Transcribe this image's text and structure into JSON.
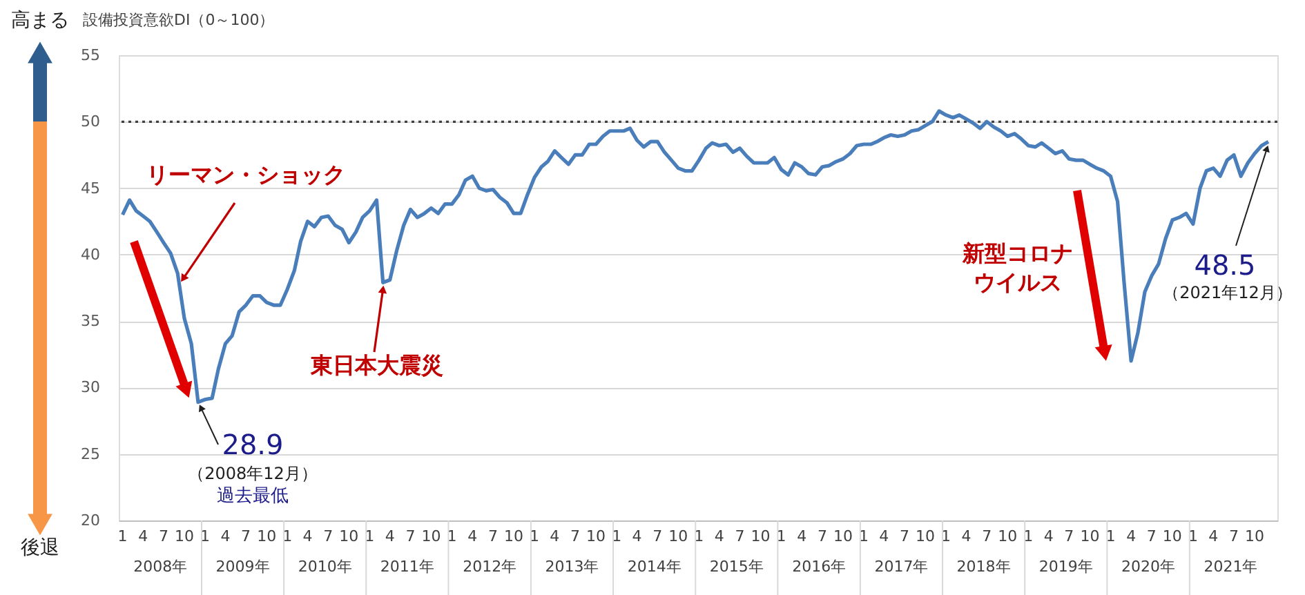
{
  "chart_data": {
    "type": "line",
    "ylabel": "設備投資意欲DI（0～100）",
    "x": [
      "2008-01",
      "2008-02",
      "2008-03",
      "2008-04",
      "2008-05",
      "2008-06",
      "2008-07",
      "2008-08",
      "2008-09",
      "2008-10",
      "2008-11",
      "2008-12",
      "2009-01",
      "2009-02",
      "2009-03",
      "2009-04",
      "2009-05",
      "2009-06",
      "2009-07",
      "2009-08",
      "2009-09",
      "2009-10",
      "2009-11",
      "2009-12",
      "2010-01",
      "2010-02",
      "2010-03",
      "2010-04",
      "2010-05",
      "2010-06",
      "2010-07",
      "2010-08",
      "2010-09",
      "2010-10",
      "2010-11",
      "2010-12",
      "2011-01",
      "2011-02",
      "2011-03",
      "2011-04",
      "2011-05",
      "2011-06",
      "2011-07",
      "2011-08",
      "2011-09",
      "2011-10",
      "2011-11",
      "2011-12",
      "2012-01",
      "2012-02",
      "2012-03",
      "2012-04",
      "2012-05",
      "2012-06",
      "2012-07",
      "2012-08",
      "2012-09",
      "2012-10",
      "2012-11",
      "2012-12",
      "2013-01",
      "2013-02",
      "2013-03",
      "2013-04",
      "2013-05",
      "2013-06",
      "2013-07",
      "2013-08",
      "2013-09",
      "2013-10",
      "2013-11",
      "2013-12",
      "2014-01",
      "2014-02",
      "2014-03",
      "2014-04",
      "2014-05",
      "2014-06",
      "2014-07",
      "2014-08",
      "2014-09",
      "2014-10",
      "2014-11",
      "2014-12",
      "2015-01",
      "2015-02",
      "2015-03",
      "2015-04",
      "2015-05",
      "2015-06",
      "2015-07",
      "2015-08",
      "2015-09",
      "2015-10",
      "2015-11",
      "2015-12",
      "2016-01",
      "2016-02",
      "2016-03",
      "2016-04",
      "2016-05",
      "2016-06",
      "2016-07",
      "2016-08",
      "2016-09",
      "2016-10",
      "2016-11",
      "2016-12",
      "2017-01",
      "2017-02",
      "2017-03",
      "2017-04",
      "2017-05",
      "2017-06",
      "2017-07",
      "2017-08",
      "2017-09",
      "2017-10",
      "2017-11",
      "2017-12",
      "2018-01",
      "2018-02",
      "2018-03",
      "2018-04",
      "2018-05",
      "2018-06",
      "2018-07",
      "2018-08",
      "2018-09",
      "2018-10",
      "2018-11",
      "2018-12",
      "2019-01",
      "2019-02",
      "2019-03",
      "2019-04",
      "2019-05",
      "2019-06",
      "2019-07",
      "2019-08",
      "2019-09",
      "2019-10",
      "2019-11",
      "2019-12",
      "2020-01",
      "2020-02",
      "2020-03",
      "2020-04",
      "2020-05",
      "2020-06",
      "2020-07",
      "2020-08",
      "2020-09",
      "2020-10",
      "2020-11",
      "2020-12",
      "2021-01",
      "2021-02",
      "2021-03",
      "2021-04",
      "2021-05",
      "2021-06",
      "2021-07",
      "2021-08",
      "2021-09",
      "2021-10",
      "2021-11",
      "2021-12"
    ],
    "series": [
      {
        "color": "#4a7ebb",
        "values": [
          43.0,
          44.1,
          43.3,
          42.9,
          42.5,
          41.7,
          40.9,
          40.1,
          38.6,
          35.2,
          33.3,
          28.9,
          29.1,
          29.2,
          31.4,
          33.3,
          33.9,
          35.7,
          36.2,
          36.9,
          36.9,
          36.4,
          36.2,
          36.2,
          37.4,
          38.8,
          41.0,
          42.5,
          42.1,
          42.8,
          42.9,
          42.2,
          41.9,
          40.9,
          41.7,
          42.8,
          43.3,
          44.1,
          37.9,
          38.1,
          40.3,
          42.2,
          43.4,
          42.8,
          43.1,
          43.5,
          43.1,
          43.8,
          43.8,
          44.5,
          45.6,
          45.9,
          45.0,
          44.8,
          44.9,
          44.3,
          43.9,
          43.1,
          43.1,
          44.5,
          45.8,
          46.6,
          47.0,
          47.8,
          47.3,
          46.8,
          47.5,
          47.5,
          48.3,
          48.3,
          48.9,
          49.3,
          49.3,
          49.3,
          49.5,
          48.6,
          48.1,
          48.5,
          48.5,
          47.7,
          47.1,
          46.5,
          46.3,
          46.3,
          47.1,
          48.0,
          48.4,
          48.2,
          48.3,
          47.7,
          48.0,
          47.4,
          46.9,
          46.9,
          46.9,
          47.3,
          46.4,
          46.0,
          46.9,
          46.6,
          46.1,
          46.0,
          46.6,
          46.7,
          47.0,
          47.2,
          47.6,
          48.2,
          48.3,
          48.3,
          48.5,
          48.8,
          49.0,
          48.9,
          49.0,
          49.3,
          49.4,
          49.7,
          50.0,
          50.8,
          50.5,
          50.3,
          50.5,
          50.2,
          49.9,
          49.5,
          50.0,
          49.6,
          49.3,
          48.9,
          49.1,
          48.7,
          48.2,
          48.1,
          48.4,
          48.0,
          47.6,
          47.8,
          47.2,
          47.1,
          47.1,
          46.8,
          46.5,
          46.3,
          45.9,
          44.0,
          37.9,
          32.0,
          34.1,
          37.2,
          38.4,
          39.3,
          41.2,
          42.6,
          42.8,
          43.1,
          42.3,
          45.0,
          46.3,
          46.5,
          45.9,
          47.1,
          47.5,
          45.9,
          46.9,
          47.6,
          48.2,
          48.5
        ]
      }
    ],
    "xlim": [
      "2007-12-15",
      "2022-01-10"
    ],
    "xticks": [
      {
        "value": "2008-01",
        "label": "1"
      },
      {
        "value": "2008-04",
        "label": "4"
      },
      {
        "value": "2008-07",
        "label": "7"
      },
      {
        "value": "2008-10",
        "label": "10"
      },
      {
        "value": "2009-01",
        "label": "1"
      },
      {
        "value": "2009-04",
        "label": "4"
      },
      {
        "value": "2009-07",
        "label": "7"
      },
      {
        "value": "2009-10",
        "label": "10"
      },
      {
        "value": "2010-01",
        "label": "1"
      },
      {
        "value": "2010-04",
        "label": "4"
      },
      {
        "value": "2010-07",
        "label": "7"
      },
      {
        "value": "2010-10",
        "label": "10"
      },
      {
        "value": "2011-01",
        "label": "1"
      },
      {
        "value": "2011-04",
        "label": "4"
      },
      {
        "value": "2011-07",
        "label": "7"
      },
      {
        "value": "2011-10",
        "label": "10"
      },
      {
        "value": "2012-01",
        "label": "1"
      },
      {
        "value": "2012-04",
        "label": "4"
      },
      {
        "value": "2012-07",
        "label": "7"
      },
      {
        "value": "2012-10",
        "label": "10"
      },
      {
        "value": "2013-01",
        "label": "1"
      },
      {
        "value": "2013-04",
        "label": "4"
      },
      {
        "value": "2013-07",
        "label": "7"
      },
      {
        "value": "2013-10",
        "label": "10"
      },
      {
        "value": "2014-01",
        "label": "1"
      },
      {
        "value": "2014-04",
        "label": "4"
      },
      {
        "value": "2014-07",
        "label": "7"
      },
      {
        "value": "2014-10",
        "label": "10"
      },
      {
        "value": "2015-01",
        "label": "1"
      },
      {
        "value": "2015-04",
        "label": "4"
      },
      {
        "value": "2015-07",
        "label": "7"
      },
      {
        "value": "2015-10",
        "label": "10"
      },
      {
        "value": "2016-01",
        "label": "1"
      },
      {
        "value": "2016-04",
        "label": "4"
      },
      {
        "value": "2016-07",
        "label": "7"
      },
      {
        "value": "2016-10",
        "label": "10"
      },
      {
        "value": "2017-01",
        "label": "1"
      },
      {
        "value": "2017-04",
        "label": "4"
      },
      {
        "value": "2017-07",
        "label": "7"
      },
      {
        "value": "2017-10",
        "label": "10"
      },
      {
        "value": "2018-01",
        "label": "1"
      },
      {
        "value": "2018-04",
        "label": "4"
      },
      {
        "value": "2018-07",
        "label": "7"
      },
      {
        "value": "2018-10",
        "label": "10"
      },
      {
        "value": "2019-01",
        "label": "1"
      },
      {
        "value": "2019-04",
        "label": "4"
      },
      {
        "value": "2019-07",
        "label": "7"
      },
      {
        "value": "2019-10",
        "label": "10"
      },
      {
        "value": "2020-01",
        "label": "1"
      },
      {
        "value": "2020-04",
        "label": "4"
      },
      {
        "value": "2020-07",
        "label": "7"
      },
      {
        "value": "2020-10",
        "label": "10"
      },
      {
        "value": "2021-01",
        "label": "1"
      },
      {
        "value": "2021-04",
        "label": "4"
      },
      {
        "value": "2021-07",
        "label": "7"
      },
      {
        "value": "2021-10",
        "label": "10"
      }
    ],
    "ylim": [
      20,
      55
    ],
    "yticks": [
      20,
      25,
      30,
      35,
      40,
      45,
      50,
      55
    ],
    "grid": "y",
    "ref_lines": [
      {
        "axis": "y",
        "value": 50,
        "color": "#404040",
        "line_style": "dotted"
      }
    ],
    "annotations": [
      {
        "text": "リーマン・ショック",
        "x": "2008-09",
        "y": 38.6
      },
      {
        "text": "東日本大震災",
        "x": "2011-03",
        "y": 37.9
      },
      "新型コロナ",
      "ウイルス",
      {
        "text": "28.9",
        "x": "2008-12",
        "y": 28.9
      },
      "（2008年12月）",
      "過去最低",
      {
        "text": "48.5",
        "x": "2021-12",
        "y": 48.5
      },
      "（2021年12月）",
      "高まる",
      "後退",
      "2008年",
      "2009年",
      "2010年",
      "2011年",
      "2012年",
      "2013年",
      "2014年",
      "2015年",
      "2016年",
      "2017年",
      "2018年",
      "2019年",
      "2020年",
      "2021年"
    ]
  }
}
